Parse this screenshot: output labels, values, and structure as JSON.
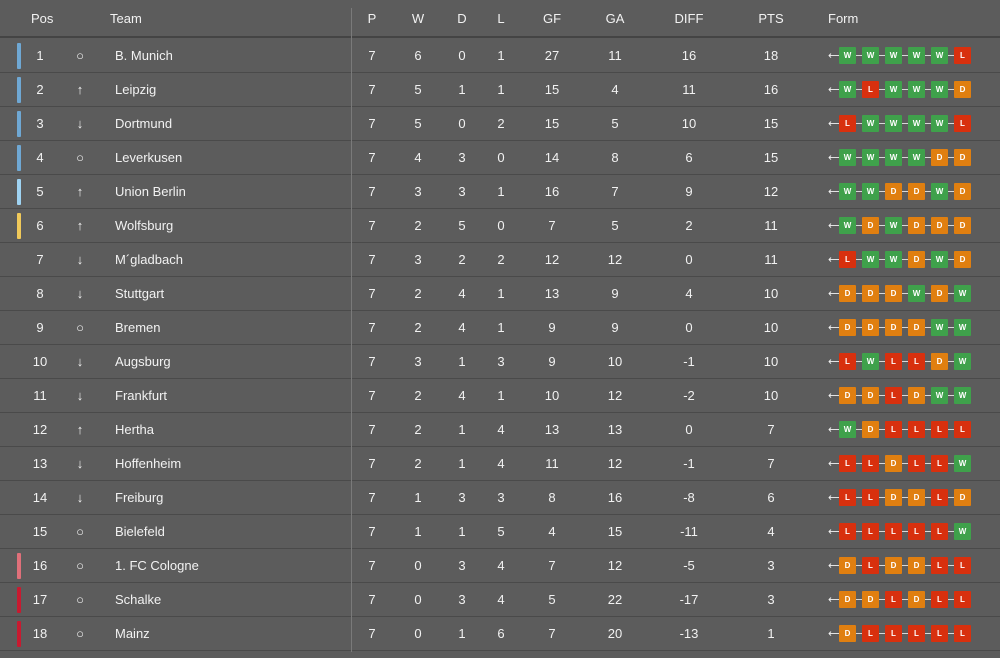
{
  "headers": {
    "pos": "Pos",
    "team": "Team",
    "p": "P",
    "w": "W",
    "d": "D",
    "l": "L",
    "gf": "GF",
    "ga": "GA",
    "diff": "DIFF",
    "pts": "PTS",
    "form": "Form"
  },
  "colors": {
    "W": "#3fa14b",
    "D": "#e07f10",
    "L": "#d8300e",
    "cl": "#6fa8d4",
    "el": "#9fd3f2",
    "conf": "#f0c95a",
    "rel_playoff": "#e0707a",
    "rel": "#c81a30"
  },
  "icons": {
    "up": "arrow-up-icon",
    "down": "arrow-down-icon",
    "same": "circle-icon",
    "form_arrow": "arrow-left-icon"
  },
  "rows": [
    {
      "pos": "1",
      "move": "same",
      "team": "B. Munich",
      "p": "7",
      "w": "6",
      "d": "0",
      "l": "1",
      "gf": "27",
      "ga": "11",
      "diff": "16",
      "pts": "18",
      "zone": "cl",
      "form": [
        "W",
        "W",
        "W",
        "W",
        "W",
        "L"
      ]
    },
    {
      "pos": "2",
      "move": "up",
      "team": "Leipzig",
      "p": "7",
      "w": "5",
      "d": "1",
      "l": "1",
      "gf": "15",
      "ga": "4",
      "diff": "11",
      "pts": "16",
      "zone": "cl",
      "form": [
        "W",
        "L",
        "W",
        "W",
        "W",
        "D"
      ]
    },
    {
      "pos": "3",
      "move": "down",
      "team": "Dortmund",
      "p": "7",
      "w": "5",
      "d": "0",
      "l": "2",
      "gf": "15",
      "ga": "5",
      "diff": "10",
      "pts": "15",
      "zone": "cl",
      "form": [
        "L",
        "W",
        "W",
        "W",
        "W",
        "L"
      ]
    },
    {
      "pos": "4",
      "move": "same",
      "team": "Leverkusen",
      "p": "7",
      "w": "4",
      "d": "3",
      "l": "0",
      "gf": "14",
      "ga": "8",
      "diff": "6",
      "pts": "15",
      "zone": "cl",
      "form": [
        "W",
        "W",
        "W",
        "W",
        "D",
        "D"
      ]
    },
    {
      "pos": "5",
      "move": "up",
      "team": "Union Berlin",
      "p": "7",
      "w": "3",
      "d": "3",
      "l": "1",
      "gf": "16",
      "ga": "7",
      "diff": "9",
      "pts": "12",
      "zone": "el",
      "form": [
        "W",
        "W",
        "D",
        "D",
        "W",
        "D"
      ]
    },
    {
      "pos": "6",
      "move": "up",
      "team": "Wolfsburg",
      "p": "7",
      "w": "2",
      "d": "5",
      "l": "0",
      "gf": "7",
      "ga": "5",
      "diff": "2",
      "pts": "11",
      "zone": "conf",
      "form": [
        "W",
        "D",
        "W",
        "D",
        "D",
        "D"
      ]
    },
    {
      "pos": "7",
      "move": "down",
      "team": "M´gladbach",
      "p": "7",
      "w": "3",
      "d": "2",
      "l": "2",
      "gf": "12",
      "ga": "12",
      "diff": "0",
      "pts": "11",
      "zone": "",
      "form": [
        "L",
        "W",
        "W",
        "D",
        "W",
        "D"
      ]
    },
    {
      "pos": "8",
      "move": "down",
      "team": "Stuttgart",
      "p": "7",
      "w": "2",
      "d": "4",
      "l": "1",
      "gf": "13",
      "ga": "9",
      "diff": "4",
      "pts": "10",
      "zone": "",
      "form": [
        "D",
        "D",
        "D",
        "W",
        "D",
        "W"
      ]
    },
    {
      "pos": "9",
      "move": "same",
      "team": "Bremen",
      "p": "7",
      "w": "2",
      "d": "4",
      "l": "1",
      "gf": "9",
      "ga": "9",
      "diff": "0",
      "pts": "10",
      "zone": "",
      "form": [
        "D",
        "D",
        "D",
        "D",
        "W",
        "W"
      ]
    },
    {
      "pos": "10",
      "move": "down",
      "team": "Augsburg",
      "p": "7",
      "w": "3",
      "d": "1",
      "l": "3",
      "gf": "9",
      "ga": "10",
      "diff": "-1",
      "pts": "10",
      "zone": "",
      "form": [
        "L",
        "W",
        "L",
        "L",
        "D",
        "W"
      ]
    },
    {
      "pos": "11",
      "move": "down",
      "team": "Frankfurt",
      "p": "7",
      "w": "2",
      "d": "4",
      "l": "1",
      "gf": "10",
      "ga": "12",
      "diff": "-2",
      "pts": "10",
      "zone": "",
      "form": [
        "D",
        "D",
        "L",
        "D",
        "W",
        "W"
      ]
    },
    {
      "pos": "12",
      "move": "up",
      "team": "Hertha",
      "p": "7",
      "w": "2",
      "d": "1",
      "l": "4",
      "gf": "13",
      "ga": "13",
      "diff": "0",
      "pts": "7",
      "zone": "",
      "form": [
        "W",
        "D",
        "L",
        "L",
        "L",
        "L"
      ]
    },
    {
      "pos": "13",
      "move": "down",
      "team": "Hoffenheim",
      "p": "7",
      "w": "2",
      "d": "1",
      "l": "4",
      "gf": "11",
      "ga": "12",
      "diff": "-1",
      "pts": "7",
      "zone": "",
      "form": [
        "L",
        "L",
        "D",
        "L",
        "L",
        "W"
      ]
    },
    {
      "pos": "14",
      "move": "down",
      "team": "Freiburg",
      "p": "7",
      "w": "1",
      "d": "3",
      "l": "3",
      "gf": "8",
      "ga": "16",
      "diff": "-8",
      "pts": "6",
      "zone": "",
      "form": [
        "L",
        "L",
        "D",
        "D",
        "L",
        "D"
      ]
    },
    {
      "pos": "15",
      "move": "same",
      "team": "Bielefeld",
      "p": "7",
      "w": "1",
      "d": "1",
      "l": "5",
      "gf": "4",
      "ga": "15",
      "diff": "-11",
      "pts": "4",
      "zone": "",
      "form": [
        "L",
        "L",
        "L",
        "L",
        "L",
        "W"
      ]
    },
    {
      "pos": "16",
      "move": "same",
      "team": "1. FC Cologne",
      "p": "7",
      "w": "0",
      "d": "3",
      "l": "4",
      "gf": "7",
      "ga": "12",
      "diff": "-5",
      "pts": "3",
      "zone": "rel_playoff",
      "form": [
        "D",
        "L",
        "D",
        "D",
        "L",
        "L"
      ]
    },
    {
      "pos": "17",
      "move": "same",
      "team": "Schalke",
      "p": "7",
      "w": "0",
      "d": "3",
      "l": "4",
      "gf": "5",
      "ga": "22",
      "diff": "-17",
      "pts": "3",
      "zone": "rel",
      "form": [
        "D",
        "D",
        "L",
        "D",
        "L",
        "L"
      ]
    },
    {
      "pos": "18",
      "move": "same",
      "team": "Mainz",
      "p": "7",
      "w": "0",
      "d": "1",
      "l": "6",
      "gf": "7",
      "ga": "20",
      "diff": "-13",
      "pts": "1",
      "zone": "rel",
      "form": [
        "D",
        "L",
        "L",
        "L",
        "L",
        "L"
      ]
    }
  ]
}
